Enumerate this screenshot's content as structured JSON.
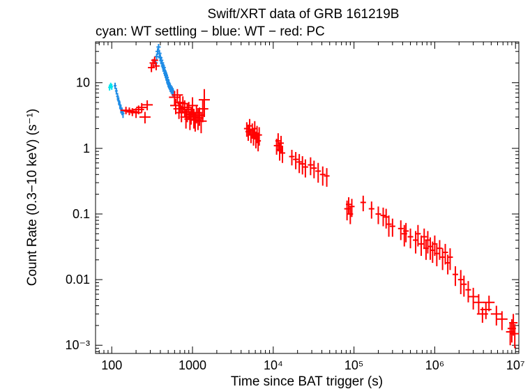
{
  "chart_data": {
    "type": "scatter",
    "title": "Swift/XRT data of GRB 161219B",
    "subtitle": "cyan: WT settling − blue: WT − red: PC",
    "xlabel": "Time since BAT trigger (s)",
    "ylabel": "Count Rate (0.3−10 keV) (s⁻¹)",
    "xscale": "log",
    "yscale": "log",
    "xlim": [
      63,
      11000000
    ],
    "ylim": [
      0.00075,
      42
    ],
    "x_ticks": [
      {
        "value": 100,
        "label": "100"
      },
      {
        "value": 1000,
        "label": "1000"
      },
      {
        "value": 10000,
        "label": "10⁴"
      },
      {
        "value": 100000,
        "label": "10⁵"
      },
      {
        "value": 1000000,
        "label": "10⁶"
      },
      {
        "value": 10000000,
        "label": "10⁷"
      }
    ],
    "y_ticks": [
      {
        "value": 0.001,
        "label": "10⁻³"
      },
      {
        "value": 0.01,
        "label": "0.01"
      },
      {
        "value": 0.1,
        "label": "0.1"
      },
      {
        "value": 1,
        "label": "1"
      },
      {
        "value": 10,
        "label": "10"
      }
    ],
    "series": [
      {
        "name": "WT settling",
        "color": "#00e5ee",
        "points": [
          [
            94,
            8.5,
            0.9,
            2
          ],
          [
            97,
            9.1,
            0.9,
            2
          ],
          [
            100,
            8.7,
            0.9,
            2
          ]
        ]
      },
      {
        "name": "WT",
        "color": "#1e8ce6",
        "points": [
          [
            110,
            9.0,
            1.0,
            2
          ],
          [
            114,
            7.5,
            0.9,
            2
          ],
          [
            118,
            6.2,
            0.8,
            2
          ],
          [
            122,
            5.3,
            0.7,
            2
          ],
          [
            126,
            4.6,
            0.6,
            2
          ],
          [
            130,
            4.0,
            0.6,
            2
          ],
          [
            134,
            3.7,
            0.5,
            2
          ],
          [
            138,
            3.4,
            0.5,
            2
          ],
          [
            350,
            20,
            2.5,
            3
          ],
          [
            360,
            25,
            3.0,
            3
          ],
          [
            370,
            30,
            3.5,
            3
          ],
          [
            380,
            35,
            4.0,
            3
          ],
          [
            390,
            28,
            3.5,
            3
          ],
          [
            400,
            24,
            3.0,
            3
          ],
          [
            410,
            22,
            3.0,
            3
          ],
          [
            420,
            20,
            2.5,
            3
          ],
          [
            430,
            18,
            2.5,
            3
          ],
          [
            440,
            17,
            2.2,
            3
          ],
          [
            450,
            15,
            2.0,
            3
          ],
          [
            460,
            14,
            2.0,
            3
          ],
          [
            470,
            13,
            1.8,
            3
          ],
          [
            480,
            12,
            1.7,
            3
          ],
          [
            490,
            11,
            1.6,
            3
          ],
          [
            500,
            10,
            1.5,
            3
          ],
          [
            510,
            9.5,
            1.4,
            3
          ],
          [
            520,
            9.0,
            1.3,
            3
          ],
          [
            530,
            8.5,
            1.3,
            3
          ],
          [
            545,
            8.0,
            1.2,
            3
          ],
          [
            560,
            7.6,
            1.2,
            3
          ],
          [
            575,
            7.2,
            1.1,
            3
          ]
        ]
      },
      {
        "name": "PC",
        "color": "#ff0000",
        "points": [
          [
            150,
            3.8,
            0.5,
            8
          ],
          [
            165,
            3.7,
            0.5,
            8
          ],
          [
            180,
            3.6,
            0.5,
            8
          ],
          [
            200,
            3.5,
            0.6,
            8
          ],
          [
            215,
            3.9,
            0.6,
            8
          ],
          [
            235,
            4.2,
            0.7,
            8
          ],
          [
            258,
            3.0,
            0.6,
            8
          ],
          [
            275,
            4.6,
            0.8,
            8
          ],
          [
            310,
            17,
            2.5,
            5
          ],
          [
            325,
            20,
            3.0,
            5
          ],
          [
            340,
            22,
            3.0,
            5
          ],
          [
            355,
            18,
            2.5,
            5
          ],
          [
            600,
            6.0,
            1.5,
            8
          ],
          [
            620,
            4.5,
            1.2,
            8
          ],
          [
            650,
            6.5,
            1.5,
            8
          ],
          [
            680,
            4.0,
            1.2,
            8
          ],
          [
            700,
            5.0,
            1.5,
            8
          ],
          [
            730,
            3.5,
            1.0,
            8
          ],
          [
            760,
            4.8,
            1.4,
            8
          ],
          [
            800,
            4.2,
            1.2,
            8
          ],
          [
            830,
            3.0,
            1.0,
            8
          ],
          [
            860,
            3.6,
            1.1,
            8
          ],
          [
            900,
            3.9,
            1.2,
            8
          ],
          [
            930,
            2.8,
            0.9,
            8
          ],
          [
            960,
            3.3,
            1.0,
            8
          ],
          [
            1000,
            4.5,
            1.5,
            8
          ],
          [
            1040,
            3.0,
            1.0,
            8
          ],
          [
            1080,
            2.7,
            0.9,
            8
          ],
          [
            1120,
            3.5,
            1.1,
            8
          ],
          [
            1170,
            2.9,
            1.0,
            8
          ],
          [
            1220,
            3.2,
            1.0,
            8
          ],
          [
            1280,
            2.6,
            0.9,
            8
          ],
          [
            1340,
            4.0,
            1.5,
            8
          ],
          [
            1400,
            5.5,
            2.5,
            8
          ],
          [
            4700,
            2.0,
            0.5,
            4
          ],
          [
            4900,
            1.8,
            0.5,
            4
          ],
          [
            5100,
            2.2,
            0.6,
            4
          ],
          [
            5300,
            1.6,
            0.4,
            4
          ],
          [
            5500,
            1.9,
            0.5,
            4
          ],
          [
            5700,
            1.5,
            0.4,
            4
          ],
          [
            5900,
            2.0,
            0.6,
            4
          ],
          [
            6100,
            1.4,
            0.4,
            4
          ],
          [
            6300,
            1.7,
            0.5,
            4
          ],
          [
            6500,
            1.3,
            0.4,
            4
          ],
          [
            6700,
            1.6,
            0.5,
            4
          ],
          [
            11000,
            1.1,
            0.3,
            4
          ],
          [
            11500,
            1.3,
            0.4,
            4
          ],
          [
            12000,
            0.95,
            0.3,
            4
          ],
          [
            12500,
            1.2,
            0.35,
            4
          ],
          [
            13000,
            0.85,
            0.25,
            4
          ],
          [
            17000,
            0.75,
            0.2,
            4
          ],
          [
            19000,
            0.68,
            0.2,
            4
          ],
          [
            21000,
            0.62,
            0.2,
            4
          ],
          [
            23000,
            0.58,
            0.18,
            4
          ],
          [
            25000,
            0.52,
            0.16,
            4
          ],
          [
            29000,
            0.56,
            0.17,
            4
          ],
          [
            32000,
            0.5,
            0.15,
            4
          ],
          [
            36000,
            0.45,
            0.15,
            4
          ],
          [
            41000,
            0.4,
            0.13,
            4
          ],
          [
            46000,
            0.38,
            0.12,
            4
          ],
          [
            82000,
            0.12,
            0.04,
            4
          ],
          [
            86000,
            0.14,
            0.04,
            4
          ],
          [
            90000,
            0.1,
            0.03,
            4
          ],
          [
            94000,
            0.13,
            0.04,
            4
          ],
          [
            130000,
            0.15,
            0.04,
            4
          ],
          [
            165000,
            0.12,
            0.035,
            4
          ],
          [
            200000,
            0.1,
            0.03,
            4
          ],
          [
            230000,
            0.095,
            0.03,
            4
          ],
          [
            250000,
            0.09,
            0.03,
            4
          ],
          [
            270000,
            0.07,
            0.025,
            4
          ],
          [
            300000,
            0.065,
            0.02,
            4
          ],
          [
            380000,
            0.06,
            0.02,
            4
          ],
          [
            420000,
            0.05,
            0.018,
            4
          ],
          [
            440000,
            0.055,
            0.018,
            4
          ],
          [
            500000,
            0.045,
            0.015,
            4
          ],
          [
            580000,
            0.04,
            0.015,
            4
          ],
          [
            620000,
            0.05,
            0.018,
            4
          ],
          [
            680000,
            0.035,
            0.012,
            4
          ],
          [
            740000,
            0.045,
            0.015,
            4
          ],
          [
            780000,
            0.03,
            0.01,
            4
          ],
          [
            820000,
            0.04,
            0.015,
            4
          ],
          [
            880000,
            0.032,
            0.012,
            4
          ],
          [
            940000,
            0.028,
            0.01,
            4
          ],
          [
            1000000,
            0.035,
            0.012,
            4
          ],
          [
            1060000,
            0.025,
            0.009,
            4
          ],
          [
            1150000,
            0.03,
            0.01,
            4
          ],
          [
            1250000,
            0.022,
            0.008,
            4
          ],
          [
            1350000,
            0.026,
            0.009,
            4
          ],
          [
            1450000,
            0.018,
            0.006,
            4
          ],
          [
            1550000,
            0.022,
            0.008,
            4
          ],
          [
            1800000,
            0.012,
            0.004,
            4
          ],
          [
            2100000,
            0.01,
            0.004,
            4
          ],
          [
            2300000,
            0.0085,
            0.003,
            4
          ],
          [
            2600000,
            0.007,
            0.0025,
            4
          ],
          [
            3000000,
            0.0055,
            0.002,
            8
          ],
          [
            3500000,
            0.0045,
            0.0015,
            8
          ],
          [
            3900000,
            0.003,
            0.0008,
            8
          ],
          [
            4300000,
            0.0035,
            0.001,
            8
          ],
          [
            4700000,
            0.0045,
            0.0012,
            8
          ],
          [
            5800000,
            0.003,
            0.001,
            8
          ],
          [
            6800000,
            0.0025,
            0.0008,
            8
          ],
          [
            8600000,
            0.0016,
            0.0006,
            6
          ],
          [
            9000000,
            0.0018,
            0.0007,
            6
          ],
          [
            9400000,
            0.0022,
            0.0008,
            6
          ],
          [
            9800000,
            0.0015,
            0.0006,
            6
          ]
        ]
      }
    ]
  }
}
